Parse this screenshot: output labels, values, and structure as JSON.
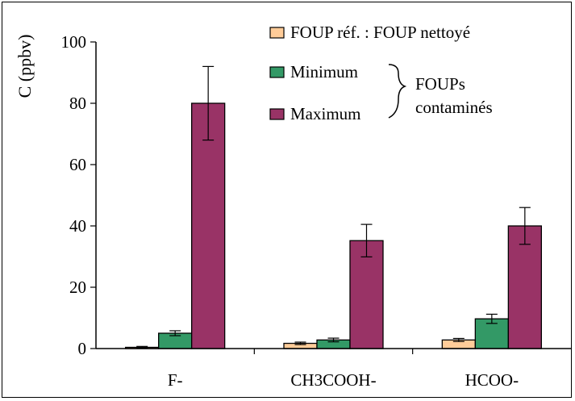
{
  "chart_data": {
    "type": "bar",
    "ylabel": "C (ppbv)",
    "ylim": [
      0,
      100
    ],
    "yticks": [
      0,
      20,
      40,
      60,
      80,
      100
    ],
    "categories": [
      "F-",
      "CH3COOH-",
      "HCOO-"
    ],
    "series": [
      {
        "name": "FOUP réf. : FOUP nettoyé",
        "color": "#FFCC99",
        "values": [
          0.4,
          1.7,
          2.8
        ],
        "errors": [
          0.3,
          0.4,
          0.5
        ]
      },
      {
        "name": "Minimum",
        "color": "#339966",
        "values": [
          5.0,
          2.8,
          9.7
        ],
        "errors": [
          0.8,
          0.6,
          1.5
        ]
      },
      {
        "name": "Maximum",
        "color": "#993366",
        "values": [
          80,
          35.2,
          40
        ],
        "errors": [
          12,
          5.3,
          6
        ]
      }
    ],
    "brace_label_line1": "FOUPs",
    "brace_label_line2": "contaminés",
    "legend_position": "top-right",
    "grid": false
  }
}
